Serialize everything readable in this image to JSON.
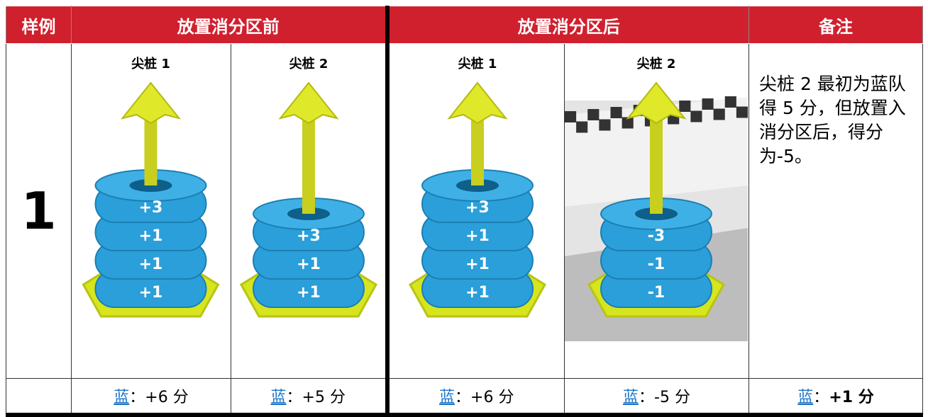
{
  "header": [
    "样例",
    "放置消分区前",
    "放置消分区后",
    "备注"
  ],
  "example": "1",
  "stakes": [
    {
      "label": "尖桩 1",
      "rings": [
        "+3",
        "+1",
        "+1",
        "+1"
      ]
    },
    {
      "label": "尖桩 2",
      "rings": [
        "+3",
        "+1",
        "+1"
      ]
    },
    {
      "label": "尖桩 1",
      "rings": [
        "+3",
        "+1",
        "+1",
        "+1"
      ]
    },
    {
      "label": "尖桩 2",
      "rings": [
        "-3",
        "-1",
        "-1"
      ]
    }
  ],
  "note": "尖桩 2 最初为蓝队得 5 分，但放置入消分区后，得分为-5。",
  "scores": [
    {
      "team": "蓝",
      "text": "：+6 分"
    },
    {
      "team": "蓝",
      "text": "：+5 分"
    },
    {
      "team": "蓝",
      "text": "：+6 分"
    },
    {
      "team": "蓝",
      "text": "：-5 分"
    },
    {
      "team": "蓝",
      "text": "：",
      "bold": "+1 分"
    }
  ]
}
